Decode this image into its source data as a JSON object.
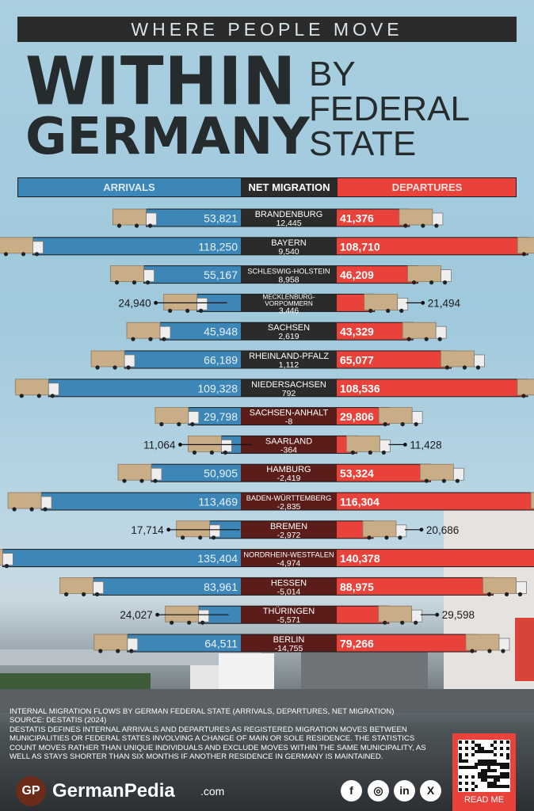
{
  "header": {
    "kicker": "WHERE PEOPLE MOVE",
    "title_big_1": "WITHIN",
    "title_big_2": "GERMANY",
    "title_side_1": "BY",
    "title_side_2": "FEDERAL",
    "title_side_3": "STATE"
  },
  "columns": {
    "arrivals": "ARRIVALS",
    "net_migration": "NET MIGRATION",
    "departures": "DEPARTURES"
  },
  "colors": {
    "arrivals": "#3d86b8",
    "departures": "#e8423a",
    "net_positive": "#2b2b2b",
    "net_negative": "#5a1d19",
    "truck": "#c8ad86"
  },
  "chart_data": {
    "type": "bar",
    "categories": [
      "BRANDENBURG",
      "BAYERN",
      "SCHLESWIG-HOLSTEIN",
      "MECKLENBURG-\nVORPOMMERN",
      "SACHSEN",
      "RHEINLAND-PFALZ",
      "NIEDERSACHSEN",
      "SACHSEN-ANHALT",
      "SAARLAND",
      "HAMBURG",
      "BADEN-WÜRTTEMBERG",
      "BREMEN",
      "NORDRHEIN-WESTFALEN",
      "HESSEN",
      "THÜRINGEN",
      "BERLIN"
    ],
    "series": [
      {
        "name": "ARRIVALS",
        "values": [
          53821,
          118250,
          55167,
          24940,
          45948,
          66189,
          109328,
          29798,
          11064,
          50905,
          113469,
          17714,
          135404,
          83961,
          24027,
          64511
        ]
      },
      {
        "name": "DEPARTURES",
        "values": [
          41376,
          108710,
          46209,
          21494,
          43329,
          65077,
          108536,
          29806,
          11428,
          53324,
          116304,
          20686,
          140378,
          88975,
          29598,
          79266
        ]
      },
      {
        "name": "NET MIGRATION",
        "values": [
          12445,
          9540,
          8958,
          3446,
          2619,
          1112,
          792,
          -8,
          -364,
          -2419,
          -2835,
          -2972,
          -4974,
          -5014,
          -5571,
          -14755
        ]
      }
    ],
    "arrivals_labels": [
      "53,821",
      "118,250",
      "55,167",
      "24,940",
      "45,948",
      "66,189",
      "109,328",
      "29,798",
      "11,064",
      "50,905",
      "113,469",
      "17,714",
      "135,404",
      "83,961",
      "24,027",
      "64,511"
    ],
    "departures_labels": [
      "41,376",
      "108,710",
      "46,209",
      "21,494",
      "43,329",
      "65,077",
      "108,536",
      "29,806",
      "11,428",
      "53,324",
      "116,304",
      "20,686",
      "140,378",
      "88,975",
      "29,598",
      "79,266"
    ],
    "net_labels": [
      "12,445",
      "9,540",
      "8,958",
      "3,446",
      "2,619",
      "1,112",
      "792",
      "-8",
      "-364",
      "-2,419",
      "-2,835",
      "-2,972",
      "-4,974",
      "-5,014",
      "-5,571",
      "-14,755"
    ]
  },
  "footer": {
    "line1": "INTERNAL MIGRATION FLOWS BY GERMAN FEDERAL STATE (ARRIVALS, DEPARTURES, NET MIGRATION)",
    "line2": "SOURCE: DESTATIS (2024)",
    "line3": "DESTATIS DEFINES INTERNAL ARRIVALS AND DEPARTURES AS REGISTERED MIGRATION MOVES BETWEEN MUNICIPALITIES OR FEDERAL STATES INVOLVING A CHANGE OF MAIN OR SOLE RESIDENCE. THE STATISTICS COUNT MOVES RATHER THAN UNIQUE INDIVIDUALS AND EXCLUDE MOVES WITHIN THE SAME MUNICIPALITY, AS WELL AS STAYS SHORTER THAN SIX MONTHS IF ANOTHER RESIDENCE IN GERMANY IS MAINTAINED."
  },
  "brand": {
    "logo_mark": "GP",
    "name": "GermanPedia",
    "suffix": ".com",
    "read_me": "READ ME"
  },
  "social": [
    {
      "icon": "facebook-icon",
      "glyph": "f"
    },
    {
      "icon": "instagram-icon",
      "glyph": "◎"
    },
    {
      "icon": "linkedin-icon",
      "glyph": "in"
    },
    {
      "icon": "x-icon",
      "glyph": "X"
    }
  ]
}
